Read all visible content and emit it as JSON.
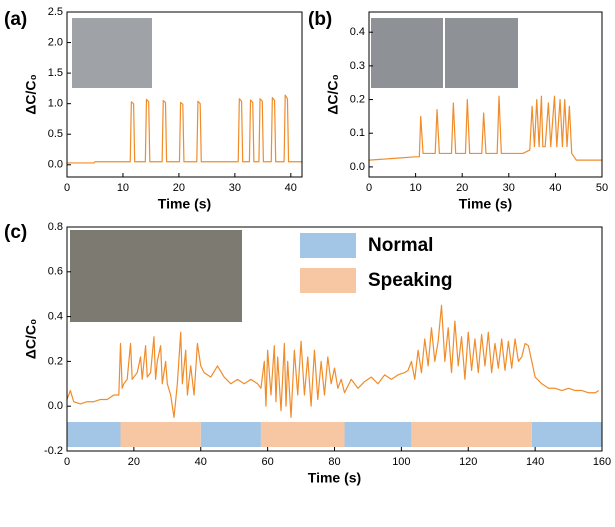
{
  "chart_data": [
    {
      "type": "line",
      "panel_label": "(a)",
      "x_label": "Time (s)",
      "y_label": "ΔC/C₀",
      "color": "#f08c2a",
      "xlim": [
        0,
        42
      ],
      "xticks": [
        0,
        10,
        20,
        30,
        40
      ],
      "ylim": [
        -0.2,
        2.5
      ],
      "yticks": [
        {
          "value": 0,
          "label": "0.0"
        },
        0.5,
        {
          "value": 1,
          "label": "1.0"
        },
        1.5,
        {
          "value": 2,
          "label": "2.0"
        },
        2.5
      ],
      "x": [
        0,
        4.8,
        5,
        11.3,
        11.5,
        11.9,
        12.1,
        14,
        14.2,
        14.6,
        14.8,
        17,
        17.2,
        17.6,
        17.8,
        20.1,
        20.3,
        20.7,
        20.9,
        23.2,
        23.4,
        23.8,
        24,
        30.6,
        30.8,
        31.2,
        31.4,
        32.6,
        32.8,
        33.2,
        33.4,
        34.3,
        34.5,
        34.9,
        35.1,
        36.5,
        36.7,
        37.1,
        37.3,
        38.8,
        39,
        39.4,
        39.6,
        42
      ],
      "values": [
        0.03,
        0.03,
        0.05,
        0.05,
        1.03,
        1.0,
        0.05,
        0.05,
        1.07,
        1.03,
        0.05,
        0.05,
        1.05,
        1.02,
        0.05,
        0.05,
        1.02,
        0.99,
        0.05,
        0.05,
        1.04,
        1.0,
        0.05,
        0.05,
        1.08,
        1.04,
        0.05,
        0.05,
        1.06,
        1.02,
        0.05,
        0.05,
        1.08,
        1.04,
        0.05,
        0.05,
        1.1,
        1.05,
        0.05,
        0.05,
        1.14,
        1.08,
        0.05,
        0.05
      ]
    },
    {
      "type": "line",
      "panel_label": "(b)",
      "x_label": "Time (s)",
      "y_label": "ΔC/C₀",
      "color": "#f08c2a",
      "xlim": [
        0,
        50
      ],
      "xticks": [
        0,
        10,
        20,
        30,
        40,
        50
      ],
      "ylim": [
        -0.03,
        0.46
      ],
      "yticks": [
        {
          "value": 0,
          "label": "0.0"
        },
        0.1,
        0.2,
        0.3,
        0.4
      ],
      "x": [
        0,
        5,
        10,
        10.8,
        11.1,
        11.6,
        14.2,
        14.6,
        15.1,
        17.7,
        18.1,
        18.6,
        20.7,
        21.1,
        21.6,
        24.2,
        24.6,
        25.1,
        27.5,
        27.9,
        28.4,
        33,
        34.5,
        35,
        35.5,
        36,
        36.5,
        37,
        37.3,
        37.8,
        38.5,
        39,
        39.8,
        40.3,
        41,
        41.5,
        42,
        42.5,
        43,
        43.5,
        44.5,
        50
      ],
      "values": [
        0.02,
        0.025,
        0.03,
        0.03,
        0.15,
        0.04,
        0.04,
        0.17,
        0.04,
        0.04,
        0.19,
        0.04,
        0.04,
        0.2,
        0.04,
        0.04,
        0.16,
        0.04,
        0.04,
        0.21,
        0.04,
        0.04,
        0.05,
        0.18,
        0.06,
        0.2,
        0.06,
        0.21,
        0.06,
        0.06,
        0.19,
        0.06,
        0.21,
        0.06,
        0.2,
        0.06,
        0.2,
        0.06,
        0.18,
        0.04,
        0.02,
        0.02
      ]
    },
    {
      "type": "line",
      "panel_label": "(c)",
      "x_label": "Time (s)",
      "y_label": "ΔC/C₀",
      "color": "#f08c2a",
      "xlim": [
        0,
        160
      ],
      "xticks": [
        0,
        20,
        40,
        60,
        80,
        100,
        120,
        140,
        160
      ],
      "ylim": [
        -0.2,
        0.8
      ],
      "yticks": [
        {
          "value": -0.2,
          "label": "-0.2"
        },
        {
          "value": 0,
          "label": "0.0"
        },
        0.2,
        0.4,
        0.6,
        0.8
      ],
      "legend": [
        {
          "name": "Normal",
          "color": "#a4c6e6",
          "spans": [
            [
              0,
              16
            ],
            [
              40,
              58
            ],
            [
              83,
              103
            ],
            [
              139,
              160
            ]
          ]
        },
        {
          "name": "Speaking",
          "color": "#f7c7a4",
          "spans": [
            [
              16,
              40
            ],
            [
              58,
              83
            ],
            [
              103,
              139
            ]
          ]
        }
      ],
      "x": [
        0,
        1,
        2,
        4,
        6,
        8,
        10,
        12,
        14,
        15.5,
        16,
        16.5,
        17,
        18,
        19,
        19.5,
        21,
        22,
        22.5,
        23.5,
        24,
        25,
        26,
        26.5,
        27,
        28,
        28.5,
        29.5,
        30,
        31,
        32,
        33,
        34,
        34.5,
        35.5,
        36,
        37,
        38,
        39,
        40,
        41,
        43,
        45,
        47,
        49,
        51,
        53,
        55,
        57,
        58,
        59,
        59.5,
        60,
        61,
        62,
        62.5,
        63,
        64,
        65,
        65.5,
        66,
        67,
        68,
        69,
        70,
        71,
        72,
        73,
        74,
        75,
        76,
        77,
        78,
        79,
        80,
        81,
        82,
        83,
        85,
        87,
        89,
        91,
        93,
        95,
        97,
        99,
        101,
        102,
        103,
        104,
        105,
        106,
        107,
        108,
        109,
        110,
        111,
        112,
        113,
        114,
        115,
        116,
        117,
        118,
        119,
        120,
        121,
        122,
        123,
        124,
        125,
        126,
        127,
        128,
        129,
        130,
        131,
        132,
        133,
        134,
        135,
        136,
        137,
        138,
        139,
        140,
        142,
        144,
        146,
        148,
        150,
        152,
        154,
        156,
        158,
        159
      ],
      "values": [
        0.03,
        0.07,
        0.02,
        0.01,
        0.02,
        0.02,
        0.03,
        0.03,
        0.05,
        0.05,
        0.28,
        0.08,
        0.1,
        0.12,
        0.28,
        0.12,
        0.15,
        0.22,
        0.12,
        0.27,
        0.13,
        0.15,
        0.31,
        0.12,
        0.2,
        0.27,
        0.1,
        0.2,
        0.1,
        0.05,
        -0.05,
        0.1,
        0.33,
        0.1,
        0.25,
        0.05,
        0.18,
        0.05,
        0.28,
        0.18,
        0.15,
        0.13,
        0.18,
        0.13,
        0.1,
        0.12,
        0.1,
        0.12,
        0.1,
        0.08,
        0.2,
        0,
        0.25,
        0.05,
        0.27,
        0.02,
        0.22,
        -0.02,
        0.28,
        0,
        0.2,
        -0.05,
        0.25,
        0.05,
        0.29,
        0.05,
        0.22,
        0,
        0.25,
        0.03,
        0.2,
        0.05,
        0.22,
        0.1,
        0.17,
        0.08,
        0.12,
        0.06,
        0.12,
        0.08,
        0.11,
        0.13,
        0.1,
        0.14,
        0.12,
        0.14,
        0.15,
        0.16,
        0.2,
        0.12,
        0.25,
        0.15,
        0.3,
        0.18,
        0.35,
        0.2,
        0.29,
        0.45,
        0.2,
        0.35,
        0.15,
        0.38,
        0.18,
        0.31,
        0.12,
        0.33,
        0.16,
        0.3,
        0.15,
        0.32,
        0.18,
        0.33,
        0.15,
        0.28,
        0.17,
        0.3,
        0.16,
        0.29,
        0.17,
        0.3,
        0.2,
        0.22,
        0.28,
        0.27,
        0.2,
        0.13,
        0.1,
        0.08,
        0.08,
        0.07,
        0.08,
        0.07,
        0.07,
        0.06,
        0.06,
        0.07
      ]
    }
  ]
}
